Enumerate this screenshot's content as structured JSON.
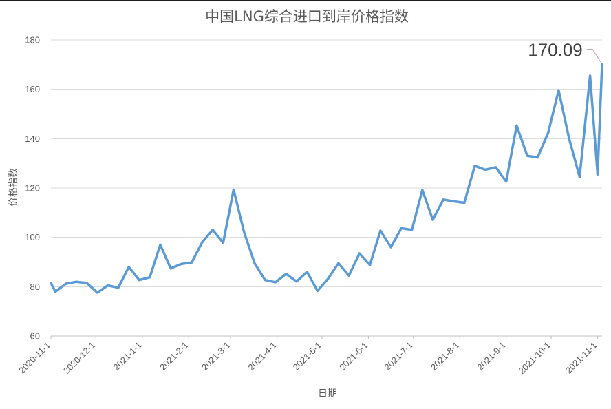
{
  "chart_data": {
    "type": "line",
    "title": "中国LNG综合进口到岸价格指数",
    "xlabel": "日期",
    "ylabel": "价格指数",
    "ylim": [
      60,
      180
    ],
    "yticks": [
      60,
      80,
      100,
      120,
      140,
      160,
      180
    ],
    "xlim": [
      "2020-11-1",
      "2021-11-4"
    ],
    "xticks": [
      "2020-11-1",
      "2020-12-1",
      "2021-1-1",
      "2021-2-1",
      "2021-3-1",
      "2021-4-1",
      "2021-5-1",
      "2021-6-1",
      "2021-7-1",
      "2021-8-1",
      "2021-9-1",
      "2021-10-1",
      "2021-11-1"
    ],
    "grid": true,
    "legend": "none",
    "colors": {
      "series": "#5b9bd5",
      "callout_leader": "#c9a0b8"
    },
    "annotation": {
      "text": "170.09",
      "x": "2021-11-4",
      "y": 170.09
    },
    "series": [
      {
        "x": [
          "2020-11-1",
          "2020-11-4",
          "2020-11-11",
          "2020-11-18",
          "2020-11-25",
          "2020-12-2",
          "2020-12-9",
          "2020-12-16",
          "2020-12-23",
          "2020-12-30",
          "2021-1-6",
          "2021-1-13",
          "2021-1-20",
          "2021-1-27",
          "2021-2-3",
          "2021-2-10",
          "2021-2-17",
          "2021-2-24",
          "2021-3-3",
          "2021-3-10",
          "2021-3-17",
          "2021-3-24",
          "2021-3-31",
          "2021-4-7",
          "2021-4-14",
          "2021-4-21",
          "2021-4-28",
          "2021-5-5",
          "2021-5-12",
          "2021-5-19",
          "2021-5-26",
          "2021-6-2",
          "2021-6-9",
          "2021-6-16",
          "2021-6-23",
          "2021-6-30",
          "2021-7-7",
          "2021-7-14",
          "2021-7-21",
          "2021-7-28",
          "2021-8-4",
          "2021-8-11",
          "2021-8-18",
          "2021-8-25",
          "2021-9-1",
          "2021-9-8",
          "2021-9-15",
          "2021-9-22",
          "2021-9-29",
          "2021-10-6",
          "2021-10-13",
          "2021-10-20",
          "2021-10-27",
          "2021-11-1",
          "2021-11-4"
        ],
        "values": [
          81.5,
          78,
          81.2,
          82,
          81.5,
          77.6,
          80.5,
          79.6,
          88,
          82.7,
          83.8,
          97,
          87.4,
          89.2,
          89.8,
          98,
          103,
          97.8,
          119.3,
          102,
          89.5,
          82.7,
          81.8,
          85.2,
          82.1,
          86,
          78.3,
          83.2,
          89.5,
          84.5,
          93.5,
          88.8,
          102.7,
          96,
          103.7,
          103,
          119.2,
          107.1,
          115.3,
          114.6,
          114,
          129,
          127.4,
          128.4,
          122.6,
          145.3,
          133.1,
          132.4,
          142.3,
          159.6,
          140,
          124.5,
          165.5,
          125.5,
          170.09
        ]
      }
    ]
  }
}
